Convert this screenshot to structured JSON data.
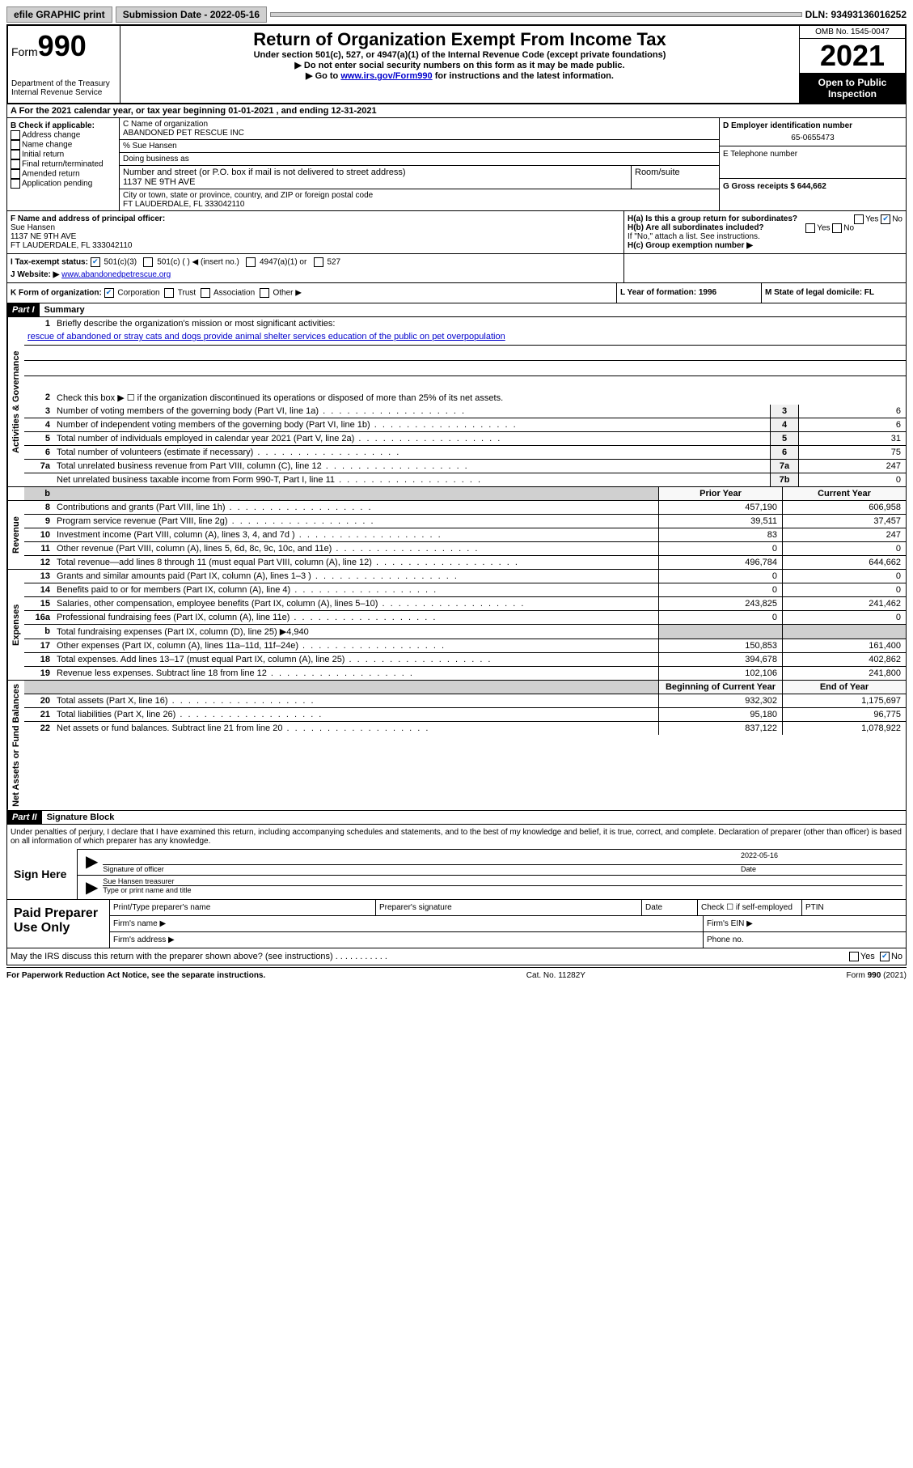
{
  "topbar": {
    "efile": "efile GRAPHIC print",
    "submission_label": "Submission Date - 2022-05-16",
    "dln": "DLN: 93493136016252"
  },
  "header": {
    "form_word": "Form",
    "form_number": "990",
    "dept": "Department of the Treasury\nInternal Revenue Service",
    "title": "Return of Organization Exempt From Income Tax",
    "subtitle": "Under section 501(c), 527, or 4947(a)(1) of the Internal Revenue Code (except private foundations)",
    "instr1": "▶ Do not enter social security numbers on this form as it may be made public.",
    "instr2_pre": "▶ Go to ",
    "instr2_link": "www.irs.gov/Form990",
    "instr2_post": " for instructions and the latest information.",
    "omb": "OMB No. 1545-0047",
    "year": "2021",
    "open": "Open to Public Inspection"
  },
  "line_a": "A For the 2021 calendar year, or tax year beginning 01-01-2021   , and ending 12-31-2021",
  "col_b": {
    "title": "B Check if applicable:",
    "opts": [
      "Address change",
      "Name change",
      "Initial return",
      "Final return/terminated",
      "Amended return",
      "Application pending"
    ]
  },
  "col_c": {
    "name_label": "C Name of organization",
    "name": "ABANDONED PET RESCUE INC",
    "care_of": "% Sue Hansen",
    "dba_label": "Doing business as",
    "street_label": "Number and street (or P.O. box if mail is not delivered to street address)",
    "room_label": "Room/suite",
    "street": "1137 NE 9TH AVE",
    "city_label": "City or town, state or province, country, and ZIP or foreign postal code",
    "city": "FT LAUDERDALE, FL  333042110"
  },
  "col_d": {
    "ein_label": "D Employer identification number",
    "ein": "65-0655473",
    "phone_label": "E Telephone number",
    "gross_label": "G Gross receipts $ 644,662"
  },
  "row_f": {
    "label": "F Name and address of principal officer:",
    "name": "Sue Hansen",
    "street": "1137 NE 9TH AVE",
    "city": "FT LAUDERDALE, FL  333042110"
  },
  "row_h": {
    "ha": "H(a)  Is this a group return for subordinates?",
    "hb": "H(b)  Are all subordinates included?",
    "hb_note": "If \"No,\" attach a list. See instructions.",
    "hc": "H(c)  Group exemption number ▶",
    "yes": "Yes",
    "no": "No"
  },
  "row_i": {
    "label": "I    Tax-exempt status:",
    "opt1": "501(c)(3)",
    "opt2": "501(c) (  ) ◀ (insert no.)",
    "opt3": "4947(a)(1) or",
    "opt4": "527"
  },
  "row_j": {
    "label": "J   Website: ▶",
    "value": "www.abandonedpetrescue.org"
  },
  "row_k": {
    "label": "K Form of organization:",
    "opts": [
      "Corporation",
      "Trust",
      "Association",
      "Other ▶"
    ],
    "l_label": "L Year of formation: 1996",
    "m_label": "M State of legal domicile: FL"
  },
  "part1": {
    "header": "Part I",
    "title": "Summary"
  },
  "governance": {
    "label": "Activities & Governance",
    "line1_label": "Briefly describe the organization's mission or most significant activities:",
    "line1_text": "rescue of abandoned or stray cats and dogs provide animal shelter services education of the public on pet overpopulation",
    "line2": "Check this box ▶ ☐  if the organization discontinued its operations or disposed of more than 25% of its net assets.",
    "lines": [
      {
        "n": "3",
        "desc": "Number of voting members of the governing body (Part VI, line 1a)",
        "box": "3",
        "val": "6"
      },
      {
        "n": "4",
        "desc": "Number of independent voting members of the governing body (Part VI, line 1b)",
        "box": "4",
        "val": "6"
      },
      {
        "n": "5",
        "desc": "Total number of individuals employed in calendar year 2021 (Part V, line 2a)",
        "box": "5",
        "val": "31"
      },
      {
        "n": "6",
        "desc": "Total number of volunteers (estimate if necessary)",
        "box": "6",
        "val": "75"
      },
      {
        "n": "7a",
        "desc": "Total unrelated business revenue from Part VIII, column (C), line 12",
        "box": "7a",
        "val": "247"
      },
      {
        "n": "",
        "desc": "Net unrelated business taxable income from Form 990-T, Part I, line 11",
        "box": "7b",
        "val": "0"
      }
    ]
  },
  "year_headers": {
    "prior": "Prior Year",
    "current": "Current Year"
  },
  "revenue": {
    "label": "Revenue",
    "lines": [
      {
        "n": "8",
        "desc": "Contributions and grants (Part VIII, line 1h)",
        "py": "457,190",
        "cy": "606,958"
      },
      {
        "n": "9",
        "desc": "Program service revenue (Part VIII, line 2g)",
        "py": "39,511",
        "cy": "37,457"
      },
      {
        "n": "10",
        "desc": "Investment income (Part VIII, column (A), lines 3, 4, and 7d )",
        "py": "83",
        "cy": "247"
      },
      {
        "n": "11",
        "desc": "Other revenue (Part VIII, column (A), lines 5, 6d, 8c, 9c, 10c, and 11e)",
        "py": "0",
        "cy": "0"
      },
      {
        "n": "12",
        "desc": "Total revenue—add lines 8 through 11 (must equal Part VIII, column (A), line 12)",
        "py": "496,784",
        "cy": "644,662"
      }
    ]
  },
  "expenses": {
    "label": "Expenses",
    "lines": [
      {
        "n": "13",
        "desc": "Grants and similar amounts paid (Part IX, column (A), lines 1–3 )",
        "py": "0",
        "cy": "0"
      },
      {
        "n": "14",
        "desc": "Benefits paid to or for members (Part IX, column (A), line 4)",
        "py": "0",
        "cy": "0"
      },
      {
        "n": "15",
        "desc": "Salaries, other compensation, employee benefits (Part IX, column (A), lines 5–10)",
        "py": "243,825",
        "cy": "241,462"
      },
      {
        "n": "16a",
        "desc": "Professional fundraising fees (Part IX, column (A), line 11e)",
        "py": "0",
        "cy": "0"
      },
      {
        "n": "b",
        "desc": "Total fundraising expenses (Part IX, column (D), line 25) ▶4,940",
        "py": "",
        "cy": "",
        "shaded": true
      },
      {
        "n": "17",
        "desc": "Other expenses (Part IX, column (A), lines 11a–11d, 11f–24e)",
        "py": "150,853",
        "cy": "161,400"
      },
      {
        "n": "18",
        "desc": "Total expenses. Add lines 13–17 (must equal Part IX, column (A), line 25)",
        "py": "394,678",
        "cy": "402,862"
      },
      {
        "n": "19",
        "desc": "Revenue less expenses. Subtract line 18 from line 12",
        "py": "102,106",
        "cy": "241,800"
      }
    ]
  },
  "netassets": {
    "label": "Net Assets or Fund Balances",
    "header_py": "Beginning of Current Year",
    "header_cy": "End of Year",
    "lines": [
      {
        "n": "20",
        "desc": "Total assets (Part X, line 16)",
        "py": "932,302",
        "cy": "1,175,697"
      },
      {
        "n": "21",
        "desc": "Total liabilities (Part X, line 26)",
        "py": "95,180",
        "cy": "96,775"
      },
      {
        "n": "22",
        "desc": "Net assets or fund balances. Subtract line 21 from line 20",
        "py": "837,122",
        "cy": "1,078,922"
      }
    ]
  },
  "part2": {
    "header": "Part II",
    "title": "Signature Block",
    "penalties": "Under penalties of perjury, I declare that I have examined this return, including accompanying schedules and statements, and to the best of my knowledge and belief, it is true, correct, and complete. Declaration of preparer (other than officer) is based on all information of which preparer has any knowledge."
  },
  "sign": {
    "here": "Sign Here",
    "sig_label": "Signature of officer",
    "date_label": "Date",
    "date": "2022-05-16",
    "name": "Sue Hansen  treasurer",
    "name_label": "Type or print name and title"
  },
  "paid": {
    "title": "Paid Preparer Use Only",
    "row1": [
      "Print/Type preparer's name",
      "Preparer's signature",
      "Date",
      "Check ☐ if self-employed",
      "PTIN"
    ],
    "row2_left": "Firm's name   ▶",
    "row2_right": "Firm's EIN ▶",
    "row3_left": "Firm's address ▶",
    "row3_right": "Phone no."
  },
  "discuss": {
    "text": "May the IRS discuss this return with the preparer shown above? (see instructions)",
    "yes": "Yes",
    "no": "No"
  },
  "footer": {
    "left": "For Paperwork Reduction Act Notice, see the separate instructions.",
    "mid": "Cat. No. 11282Y",
    "right": "Form 990 (2021)"
  }
}
